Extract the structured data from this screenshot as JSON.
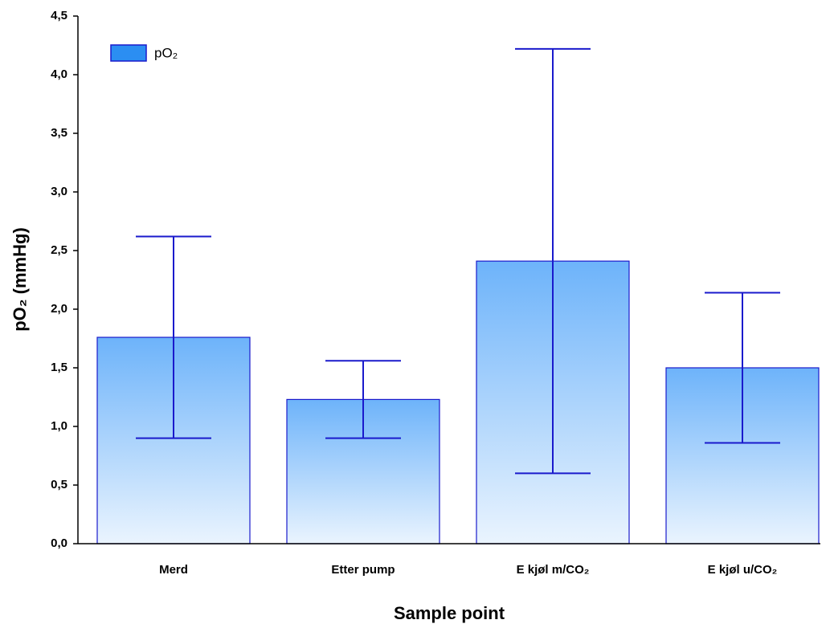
{
  "chart_data": {
    "type": "bar",
    "xlabel": "Sample point",
    "ylabel": "pO₂ (mmHg)",
    "categories": [
      "Merd",
      "Etter pump",
      "E kjøl m/CO₂",
      "E kjøl u/CO₂"
    ],
    "series": [
      {
        "name": "pO₂",
        "color": "#2b8ef2",
        "edge_color": "#1a1acc",
        "values": [
          1.76,
          1.23,
          2.41,
          1.5
        ],
        "errors": [
          0.86,
          0.33,
          1.81,
          0.64
        ]
      }
    ],
    "ylim": [
      0,
      4.5
    ],
    "yticks": [
      {
        "value": 0,
        "label": "0,0"
      },
      {
        "value": 0.5,
        "label": "0,5"
      },
      {
        "value": 1,
        "label": "1,0"
      },
      {
        "value": 1.5,
        "label": "1,5"
      },
      {
        "value": 2,
        "label": "2,0"
      },
      {
        "value": 2.5,
        "label": "2,5"
      },
      {
        "value": 3,
        "label": "3,0"
      },
      {
        "value": 3.5,
        "label": "3,5"
      },
      {
        "value": 4,
        "label": "4,0"
      },
      {
        "value": 4.5,
        "label": "4,5"
      }
    ],
    "grid": false,
    "legend": "upper left"
  }
}
